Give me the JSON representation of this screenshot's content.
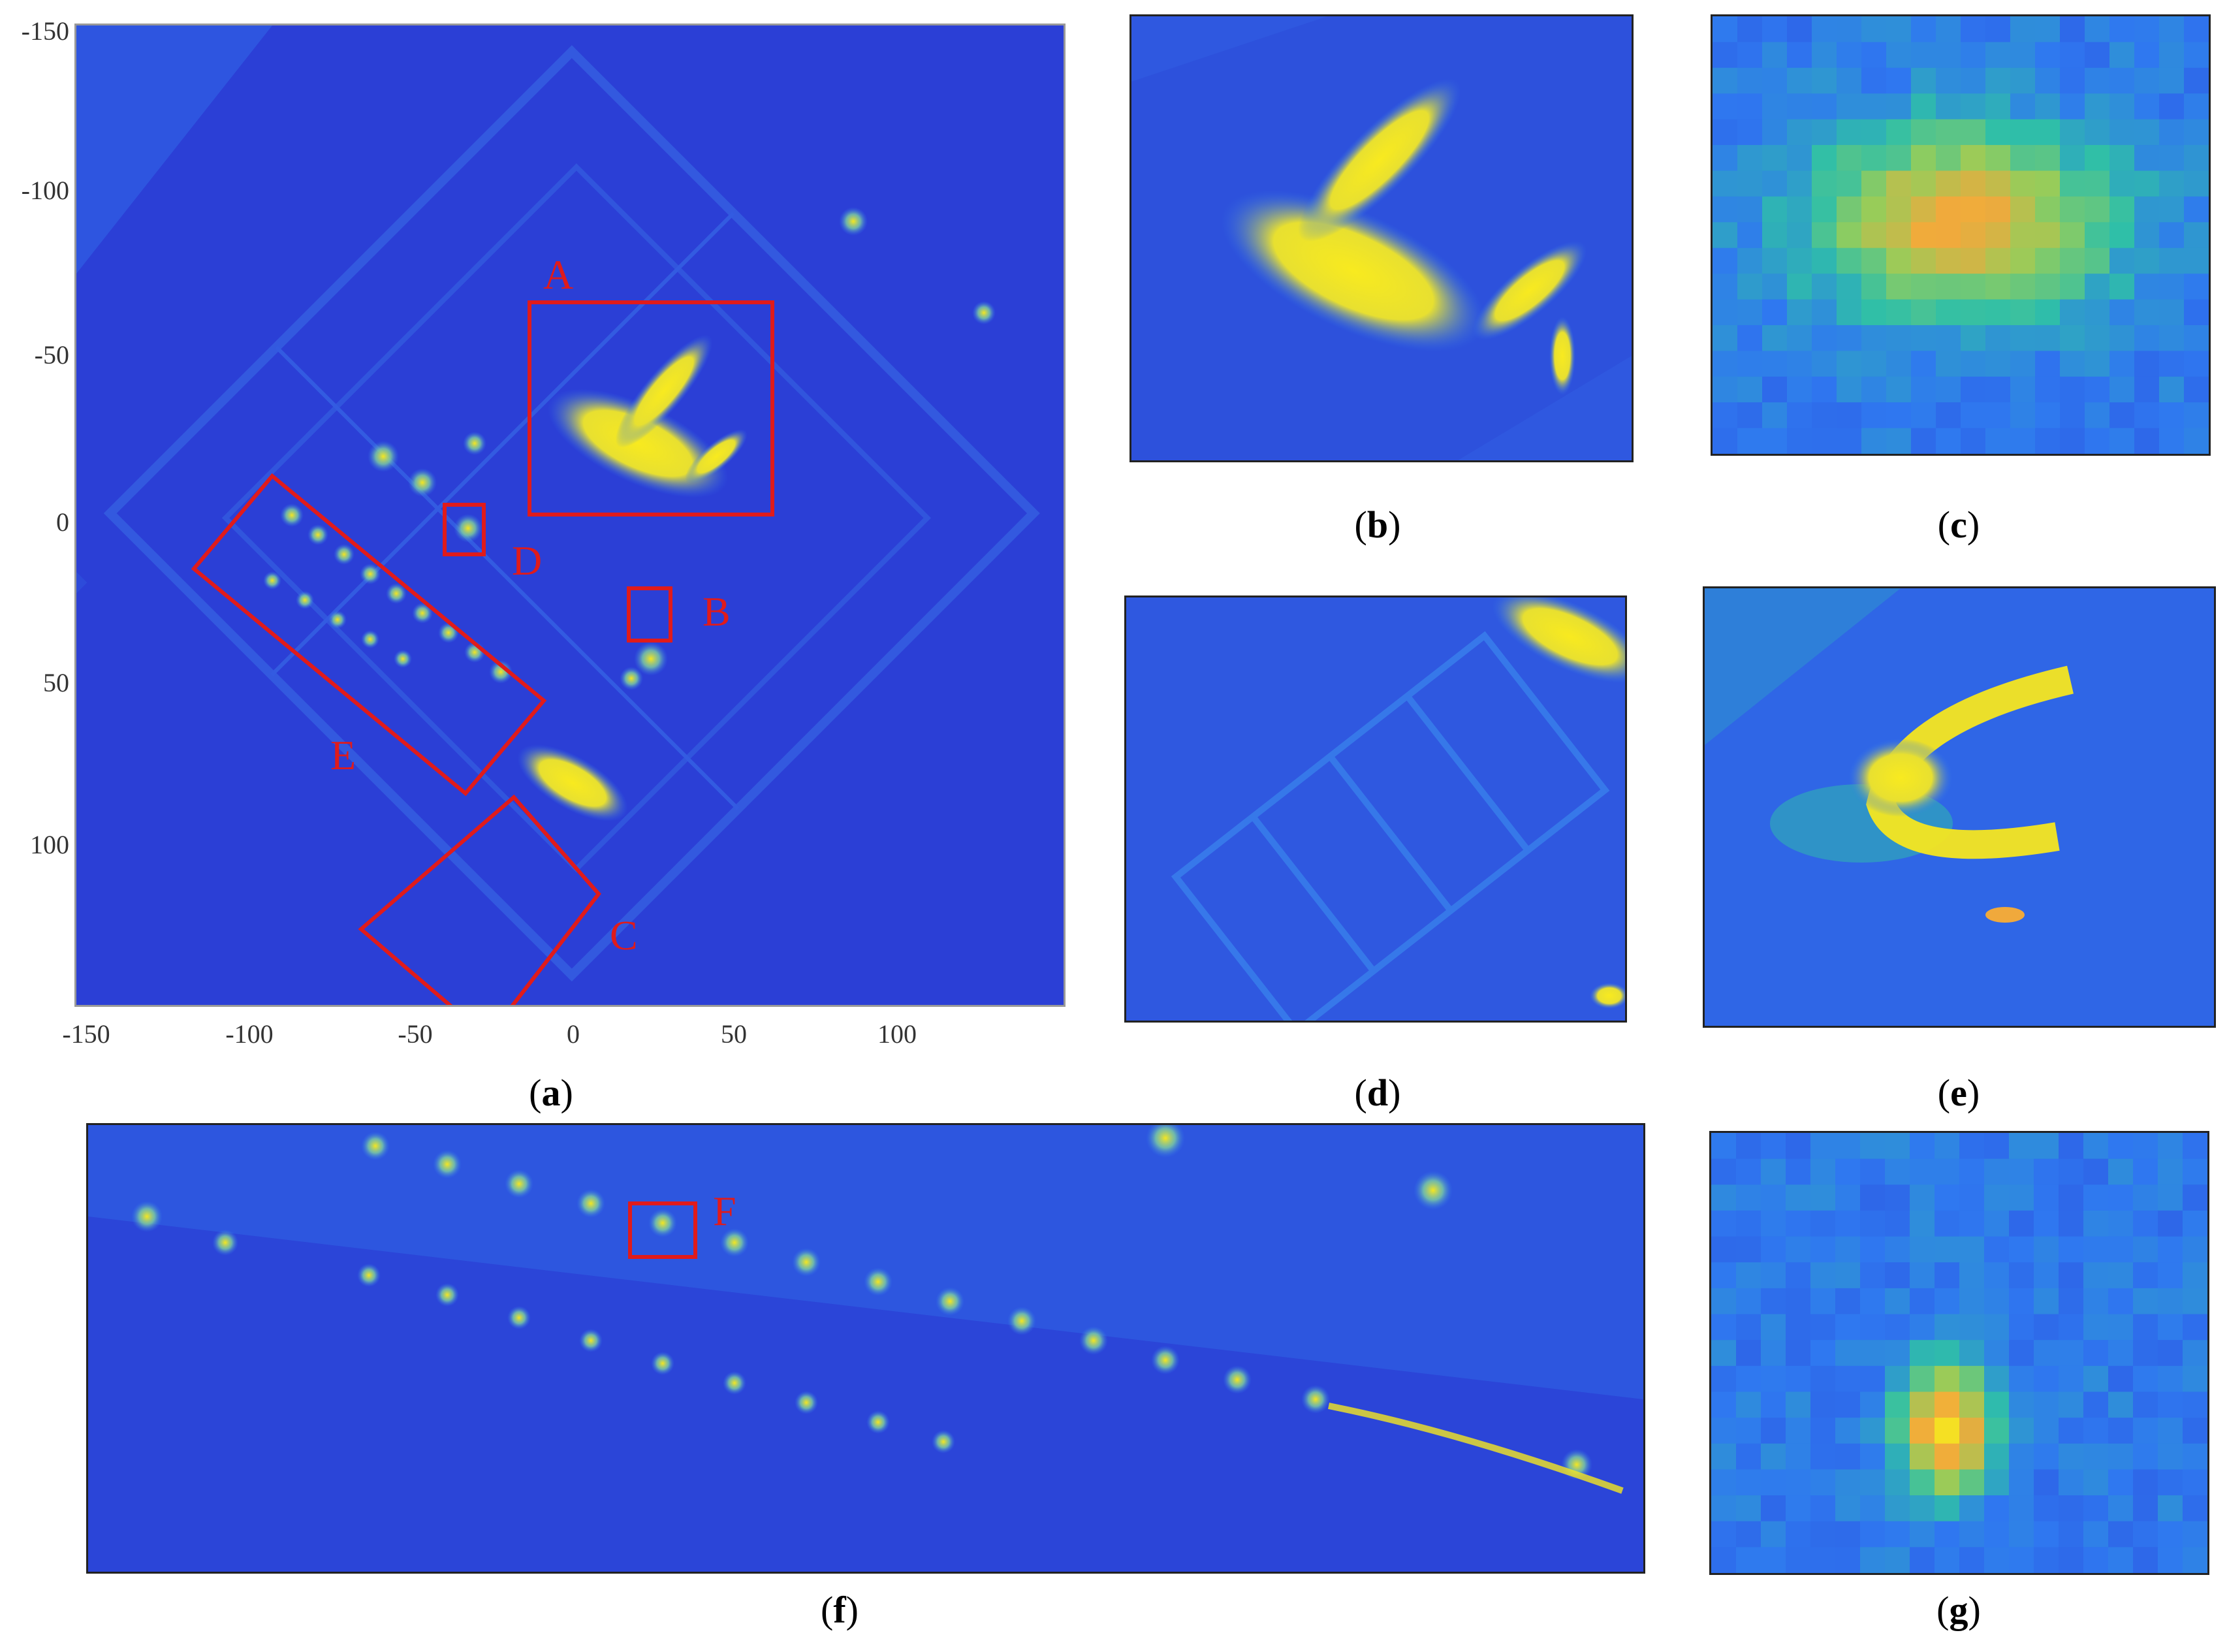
{
  "colors": {
    "bg": "#2b3fd6",
    "mid": "#2f78f0",
    "teal": "#2fbfa8",
    "yellow": "#f5e620",
    "orange": "#f0a93c",
    "box": "#e01b1b"
  },
  "panel_a": {
    "caption": "a",
    "y_ticks": [
      "-150",
      "-100",
      "-50",
      "0",
      "50",
      "100"
    ],
    "x_ticks": [
      "-150",
      "-100",
      "-50",
      "0",
      "50",
      "100"
    ],
    "region_labels": {
      "A": "A",
      "B": "B",
      "C": "C",
      "D": "D",
      "E": "E"
    }
  },
  "panel_b": {
    "caption": "b"
  },
  "panel_c": {
    "caption": "c"
  },
  "panel_d": {
    "caption": "d"
  },
  "panel_e": {
    "caption": "e"
  },
  "panel_f": {
    "caption": "f",
    "region_label": "F"
  },
  "panel_g": {
    "caption": "g"
  }
}
